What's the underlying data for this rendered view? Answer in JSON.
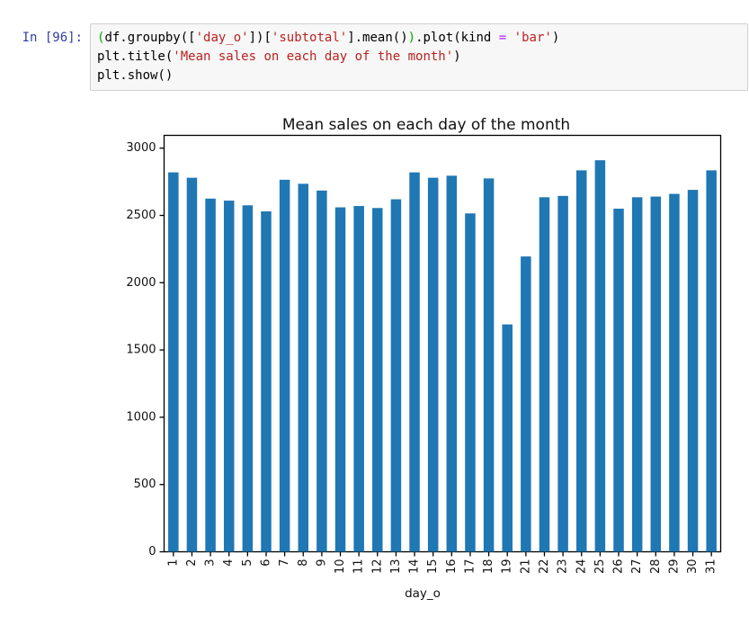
{
  "cell": {
    "prompt": "In [96]:",
    "code_lines": [
      [
        {
          "text": "(",
          "style": "bracket"
        },
        {
          "text": "df.groupby([",
          "style": "plain"
        },
        {
          "text": "'day_o'",
          "style": "string"
        },
        {
          "text": "])[",
          "style": "plain"
        },
        {
          "text": "'subtotal'",
          "style": "string"
        },
        {
          "text": "].mean()",
          "style": "plain"
        },
        {
          "text": ")",
          "style": "bracket"
        },
        {
          "text": ".plot(kind ",
          "style": "plain"
        },
        {
          "text": "=",
          "style": "operator"
        },
        {
          "text": " ",
          "style": "plain"
        },
        {
          "text": "'bar'",
          "style": "string"
        },
        {
          "text": ")",
          "style": "plain"
        }
      ],
      [
        {
          "text": "plt.title(",
          "style": "plain"
        },
        {
          "text": "'Mean sales on each day of the month'",
          "style": "string"
        },
        {
          "text": ")",
          "style": "plain"
        }
      ],
      [
        {
          "text": "plt.show()",
          "style": "plain"
        }
      ]
    ]
  },
  "chart_data": {
    "type": "bar",
    "title": "Mean sales on each day of the month",
    "xlabel": "day_o",
    "ylabel": "",
    "categories": [
      "1",
      "2",
      "3",
      "4",
      "5",
      "6",
      "7",
      "8",
      "9",
      "10",
      "11",
      "12",
      "13",
      "14",
      "15",
      "16",
      "17",
      "18",
      "19",
      "21",
      "22",
      "23",
      "24",
      "25",
      "26",
      "27",
      "28",
      "29",
      "30",
      "31"
    ],
    "values": [
      2820,
      2780,
      2625,
      2610,
      2575,
      2530,
      2765,
      2735,
      2685,
      2560,
      2570,
      2555,
      2620,
      2820,
      2780,
      2795,
      2515,
      2775,
      1690,
      2195,
      2635,
      2645,
      2835,
      2910,
      2550,
      2635,
      2640,
      2660,
      2690,
      2835
    ],
    "ylim": [
      0,
      3095
    ],
    "yticks": [
      0,
      500,
      1000,
      1500,
      2000,
      2500,
      3000
    ],
    "bar_color": "#1f77b4",
    "grid": false,
    "xtick_rotation": 90,
    "legend_position": "none"
  },
  "colors": {
    "prompt": "#303F9F",
    "string": "#BA2121",
    "operator": "#AA22FF",
    "bracket_match": "#00AB00",
    "cell_bg": "#f7f7f7",
    "cell_border": "#cfcfcf",
    "axis": "#000000",
    "bar": "#1f77b4"
  }
}
